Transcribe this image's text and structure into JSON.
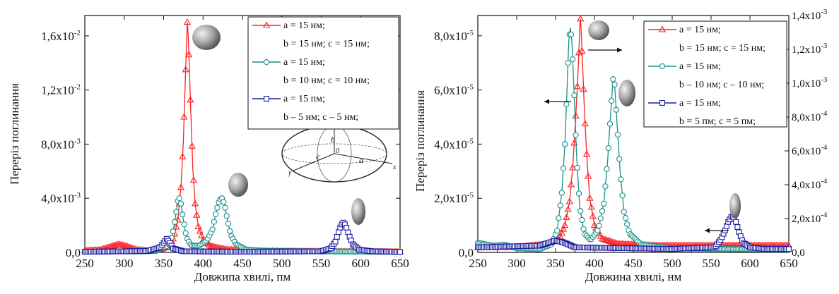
{
  "chart_data": [
    {
      "type": "line",
      "xlabel": "Довжипа хвилі, пм",
      "ylabel": "Переріз поглинання",
      "xlim": [
        250,
        650
      ],
      "ylim": [
        0,
        0.0175
      ],
      "xticks": [
        250,
        300,
        350,
        400,
        450,
        500,
        550,
        600,
        650
      ],
      "xtick_labels": [
        "250",
        "300",
        "350",
        "400",
        "450",
        "500",
        "550",
        "600",
        "650"
      ],
      "yticks": [
        0,
        0.004,
        0.008,
        0.012,
        0.016
      ],
      "ytick_labels": [
        "0,0",
        "4,0x10",
        "8,0x10",
        "1,2x10",
        "1,6x10"
      ],
      "ytick_exps": [
        "",
        "-3",
        "-3",
        "-2",
        "-2"
      ],
      "legend_position": "top-right",
      "legend_lines": [
        {
          "text": "a = 15 нм;",
          "series": 0
        },
        {
          "text": "b = 15 нм; c = 15 нм;",
          "series": -1
        },
        {
          "text": "a = 15 нм;",
          "series": 1
        },
        {
          "text": "b = 10 нм; c = 10 нм;",
          "series": -1
        },
        {
          "text": "a = 15 пм;",
          "series": 2
        },
        {
          "text": "b – 5 нм; c – 5 нм;",
          "series": -1
        }
      ],
      "inset_labels": {
        "b": "b",
        "c": "c",
        "a": "a",
        "o": "0",
        "x": "x",
        "y": "y"
      },
      "series": [
        {
          "color": "#ff2020",
          "marker": "triangle",
          "points": [
            [
              250,
              0.00012
            ],
            [
              270,
              0.00018
            ],
            [
              285,
              0.00045
            ],
            [
              293,
              0.0006
            ],
            [
              300,
              0.0005
            ],
            [
              315,
              0.0002
            ],
            [
              330,
              0.00012
            ],
            [
              345,
              0.0002
            ],
            [
              355,
              0.0004
            ],
            [
              363,
              0.0011
            ],
            [
              368,
              0.0024
            ],
            [
              372,
              0.0048
            ],
            [
              375,
              0.0082
            ],
            [
              377,
              0.0118
            ],
            [
              379,
              0.0152
            ],
            [
              380,
              0.017
            ],
            [
              381,
              0.0162
            ],
            [
              383,
              0.013
            ],
            [
              385,
              0.0095
            ],
            [
              387,
              0.0062
            ],
            [
              390,
              0.0036
            ],
            [
              394,
              0.0019
            ],
            [
              400,
              0.0009
            ],
            [
              410,
              0.00045
            ],
            [
              430,
              0.0002
            ],
            [
              470,
              0.0001
            ],
            [
              550,
              6e-05
            ],
            [
              650,
              4e-05
            ]
          ]
        },
        {
          "color": "#1a8f8a",
          "marker": "half-circle",
          "points": [
            [
              250,
              5e-05
            ],
            [
              340,
              0.0001
            ],
            [
              355,
              0.0005
            ],
            [
              361,
              0.0012
            ],
            [
              365,
              0.0026
            ],
            [
              368,
              0.0038
            ],
            [
              370,
              0.004
            ],
            [
              372,
              0.0036
            ],
            [
              375,
              0.0024
            ],
            [
              379,
              0.0011
            ],
            [
              385,
              0.0005
            ],
            [
              395,
              0.0005
            ],
            [
              405,
              0.0009
            ],
            [
              412,
              0.0017
            ],
            [
              417,
              0.0031
            ],
            [
              421,
              0.0039
            ],
            [
              424,
              0.004
            ],
            [
              427,
              0.0036
            ],
            [
              431,
              0.0024
            ],
            [
              435,
              0.0013
            ],
            [
              442,
              0.0006
            ],
            [
              455,
              0.0002
            ],
            [
              480,
              0.0001
            ],
            [
              650,
              4e-05
            ]
          ]
        },
        {
          "color": "#1a1aa0",
          "marker": "half-square",
          "points": [
            [
              250,
              5e-05
            ],
            [
              330,
              0.0001
            ],
            [
              345,
              0.00035
            ],
            [
              350,
              0.0007
            ],
            [
              354,
              0.001
            ],
            [
              357,
              0.0008
            ],
            [
              362,
              0.0003
            ],
            [
              375,
              8e-05
            ],
            [
              450,
              5e-05
            ],
            [
              550,
              8e-05
            ],
            [
              562,
              0.0003
            ],
            [
              568,
              0.0008
            ],
            [
              572,
              0.0015
            ],
            [
              575,
              0.002
            ],
            [
              578,
              0.0022
            ],
            [
              581,
              0.002
            ],
            [
              585,
              0.0013
            ],
            [
              590,
              0.0006
            ],
            [
              598,
              0.0002
            ],
            [
              615,
              8e-05
            ],
            [
              650,
              4e-05
            ]
          ]
        }
      ]
    },
    {
      "type": "line",
      "xlabel": "Довжина хвилі, нм",
      "ylabel": "Переріз поглинання",
      "xlim": [
        250,
        650
      ],
      "ylim": [
        0,
        8.75e-05
      ],
      "y2lim": [
        0,
        0.0014
      ],
      "xticks": [
        250,
        300,
        350,
        400,
        450,
        500,
        550,
        600,
        650
      ],
      "xtick_labels": [
        "250",
        "300",
        "350",
        "400",
        "450",
        "500",
        "550",
        "600",
        "650"
      ],
      "yticks": [
        0,
        2e-05,
        4e-05,
        6e-05,
        8e-05
      ],
      "ytick_labels": [
        "0,0",
        "2,0x10",
        "4,0x10",
        "6,0x10",
        "8,0x10"
      ],
      "ytick_exps": [
        "",
        "-5",
        "-5",
        "-5",
        "-5"
      ],
      "y2ticks": [
        0,
        0.0002,
        0.0004,
        0.0006,
        0.0008,
        0.001,
        0.0012,
        0.0014
      ],
      "y2tick_labels": [
        "0,0",
        "2,0x10",
        "4,0x10",
        "6,0x10",
        "8,0x10",
        "1,0x10",
        "1,2x10",
        "1,4x10"
      ],
      "y2tick_exps": [
        "",
        "-4",
        "-4",
        "-4",
        "-4",
        "-3",
        "-3",
        "-3"
      ],
      "legend_position": "top-right",
      "legend_lines": [
        {
          "text": "a = 15 нм;",
          "series": 0
        },
        {
          "text": "b = 15 нм; c = 15 нм;",
          "series": -1
        },
        {
          "text": "a = 15 нм;",
          "series": 1
        },
        {
          "text": "b – 10 нм; c – 10 нм;",
          "series": -1
        },
        {
          "text": "a = 15 нм;",
          "series": 2
        },
        {
          "text": "b = 5 пм; c = 5 пм;",
          "series": -1
        }
      ],
      "series": [
        {
          "color": "#ff2020",
          "marker": "triangle",
          "axis": "right",
          "points": [
            [
              250,
              3e-05
            ],
            [
              300,
              3e-05
            ],
            [
              340,
              5e-05
            ],
            [
              355,
              8e-05
            ],
            [
              362,
              0.00016
            ],
            [
              368,
              0.0003
            ],
            [
              372,
              0.0005
            ],
            [
              375,
              0.00072
            ],
            [
              378,
              0.00098
            ],
            [
              380,
              0.00118
            ],
            [
              381,
              0.00132
            ],
            [
              382,
              0.00138
            ],
            [
              383,
              0.0013
            ],
            [
              385,
              0.00108
            ],
            [
              387,
              0.00085
            ],
            [
              390,
              0.00058
            ],
            [
              394,
              0.00032
            ],
            [
              400,
              0.00016
            ],
            [
              410,
              8e-05
            ],
            [
              430,
              5e-05
            ],
            [
              480,
              4e-05
            ],
            [
              650,
              4e-05
            ]
          ]
        },
        {
          "color": "#1a8f8a",
          "marker": "half-circle",
          "axis": "left",
          "points": [
            [
              250,
              3.5e-06
            ],
            [
              270,
              2.5e-06
            ],
            [
              285,
              2.8e-06
            ],
            [
              300,
              1.5e-06
            ],
            [
              330,
              1.2e-06
            ],
            [
              345,
              3e-06
            ],
            [
              352,
              8e-06
            ],
            [
              358,
              2.2e-05
            ],
            [
              362,
              4e-05
            ],
            [
              365,
              6.2e-05
            ],
            [
              367,
              7.8e-05
            ],
            [
              369,
              8.3e-05
            ],
            [
              371,
              7.8e-05
            ],
            [
              374,
              5.8e-05
            ],
            [
              377,
              3.6e-05
            ],
            [
              381,
              1.7e-05
            ],
            [
              387,
              7e-06
            ],
            [
              395,
              4.5e-06
            ],
            [
              405,
              8.5e-06
            ],
            [
              412,
              1.8e-05
            ],
            [
              417,
              3.4e-05
            ],
            [
              421,
              5.2e-05
            ],
            [
              424,
              6.4e-05
            ],
            [
              426,
              6.2e-05
            ],
            [
              429,
              4.8e-05
            ],
            [
              433,
              3e-05
            ],
            [
              438,
              1.5e-05
            ],
            [
              445,
              7e-06
            ],
            [
              460,
              3e-06
            ],
            [
              500,
              1.5e-06
            ],
            [
              650,
              1e-06
            ]
          ]
        },
        {
          "color": "#1a1aa0",
          "marker": "half-square",
          "axis": "right",
          "points": [
            [
              250,
              3e-05
            ],
            [
              330,
              4e-05
            ],
            [
              350,
              7e-05
            ],
            [
              360,
              6e-05
            ],
            [
              375,
              3e-05
            ],
            [
              500,
              2e-05
            ],
            [
              555,
              3e-05
            ],
            [
              563,
              8e-05
            ],
            [
              568,
              0.00013
            ],
            [
              572,
              0.00018
            ],
            [
              576,
              0.00021
            ],
            [
              579,
              0.00021
            ],
            [
              582,
              0.00018
            ],
            [
              586,
              0.00012
            ],
            [
              591,
              6e-05
            ],
            [
              600,
              3e-05
            ],
            [
              620,
              2e-05
            ],
            [
              650,
              2e-05
            ]
          ]
        }
      ]
    }
  ]
}
